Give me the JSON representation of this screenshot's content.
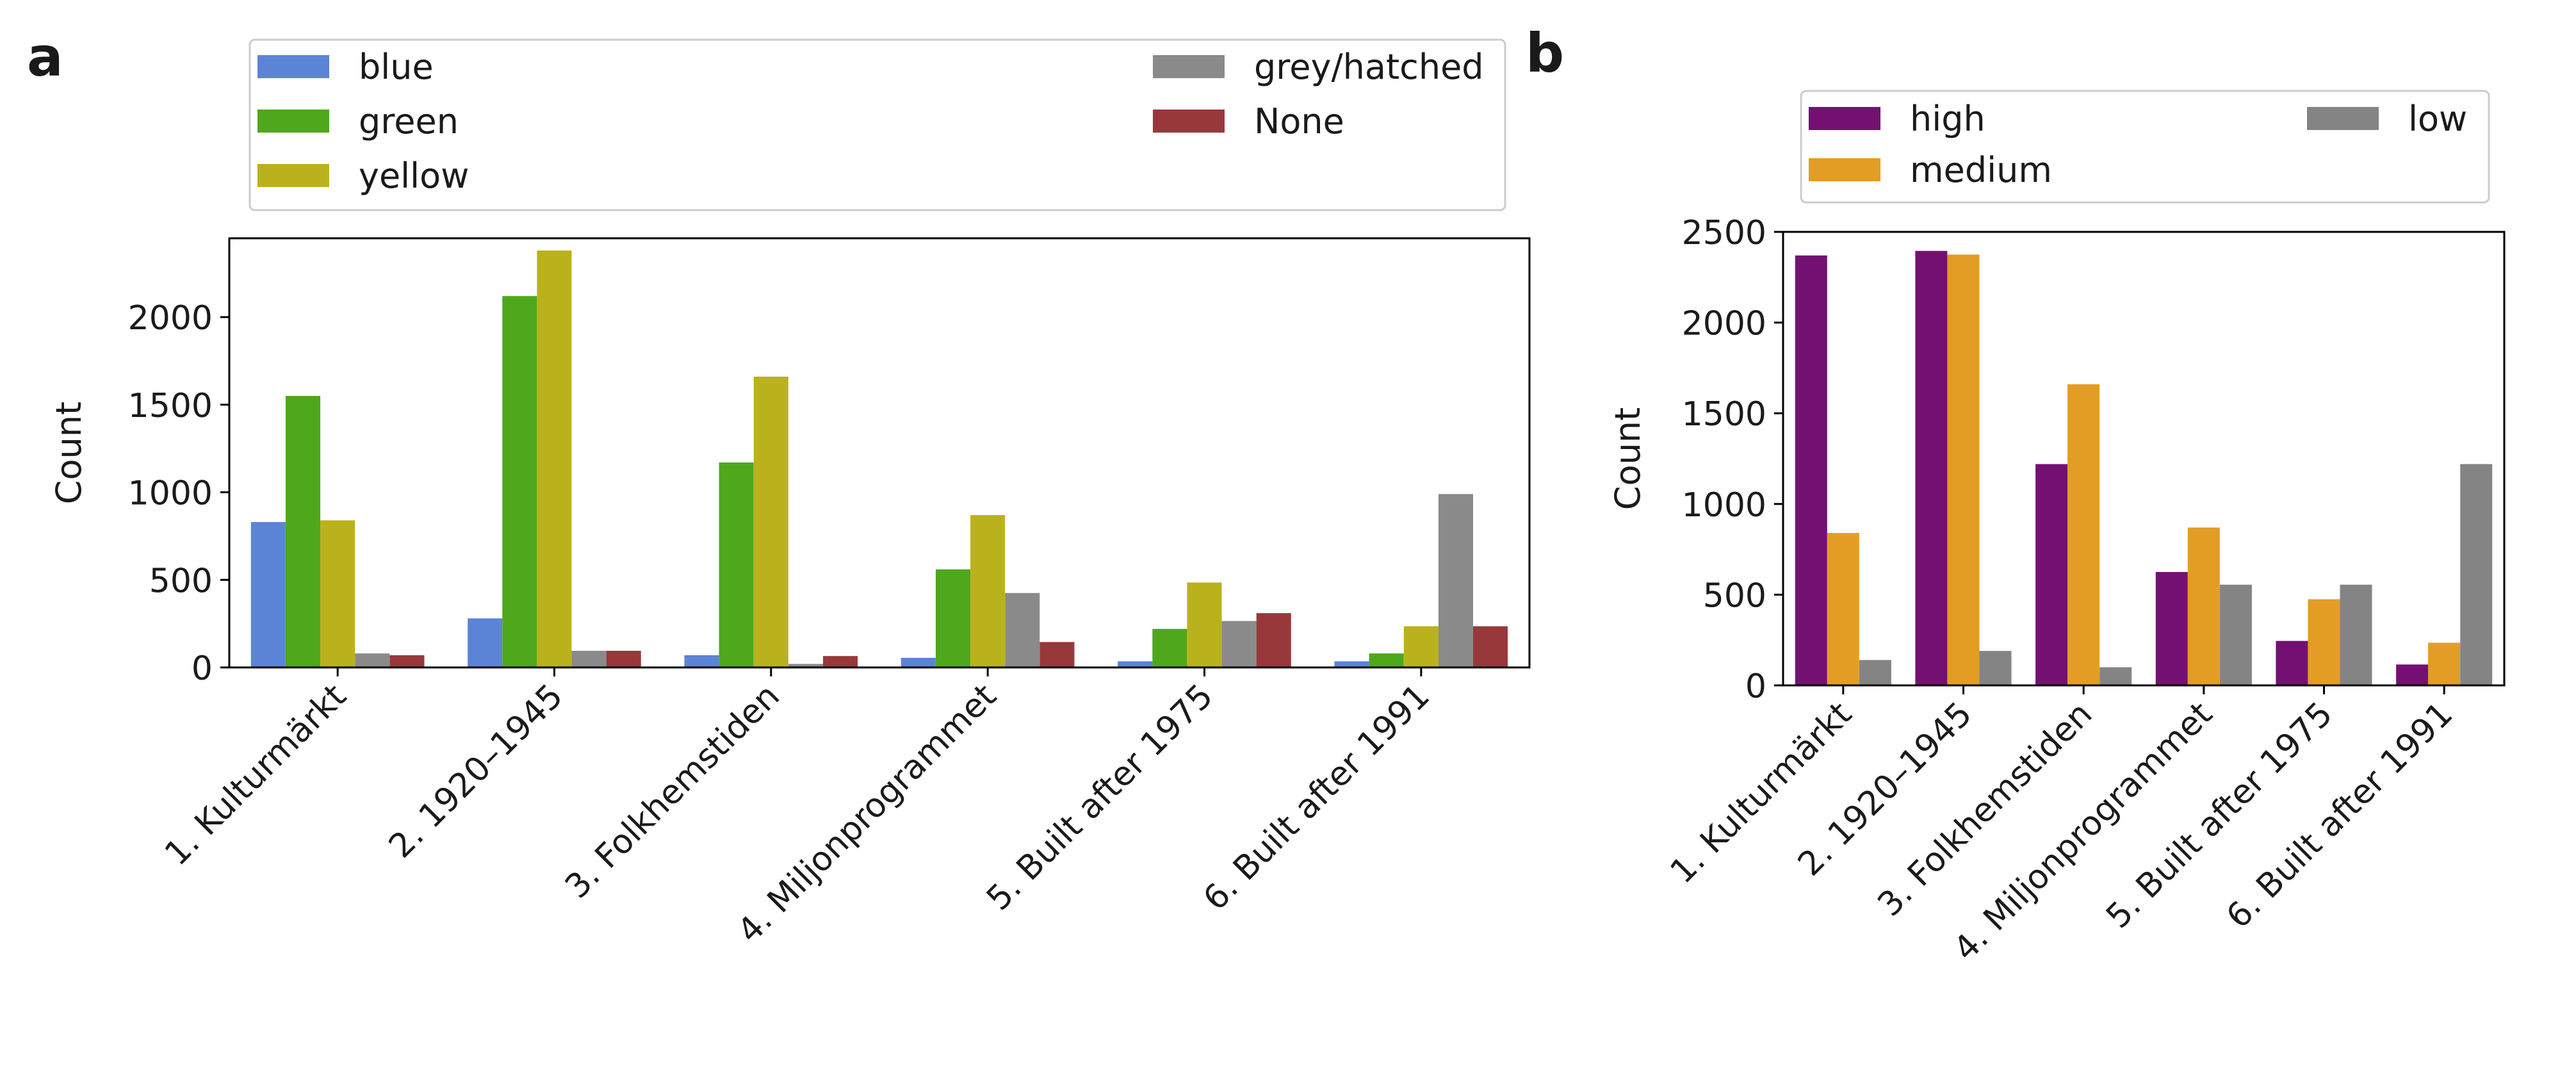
{
  "chart_data": [
    {
      "panel": "a",
      "type": "bar",
      "ylabel": "Count",
      "xlabel": "",
      "ylim": [
        0,
        2450
      ],
      "yticks": [
        0,
        500,
        1000,
        1500,
        2000
      ],
      "categories": [
        "1. Kulturmärkt",
        "2. 1920–1945",
        "3. Folkhemstiden",
        "4. Miljonprogrammet",
        "5. Built after 1975",
        "6. Built after 1991"
      ],
      "legend_position": "top (above plot)",
      "series": [
        {
          "name": "blue",
          "color": "#5b84d6",
          "values": [
            830,
            280,
            70,
            55,
            35,
            35
          ]
        },
        {
          "name": "green",
          "color": "#4fa81b",
          "values": [
            1550,
            2120,
            1170,
            560,
            220,
            80
          ]
        },
        {
          "name": "yellow",
          "color": "#bab21c",
          "values": [
            840,
            2380,
            1660,
            870,
            485,
            235
          ]
        },
        {
          "name": "grey/hatched",
          "color": "#8a8a8a",
          "values": [
            80,
            95,
            20,
            425,
            265,
            990
          ]
        },
        {
          "name": "None",
          "color": "#99383b",
          "values": [
            70,
            95,
            65,
            145,
            310,
            235
          ]
        }
      ]
    },
    {
      "panel": "b",
      "type": "bar",
      "ylabel": "Count",
      "xlabel": "",
      "ylim": [
        0,
        2500
      ],
      "yticks": [
        0,
        500,
        1000,
        1500,
        2000,
        2500
      ],
      "categories": [
        "1. Kulturmärkt",
        "2. 1920–1945",
        "3. Folkhemstiden",
        "4. Miljonprogrammet",
        "5. Built after 1975",
        "6. Built after 1991"
      ],
      "legend_position": "top (above plot)",
      "series": [
        {
          "name": "high",
          "color": "#751073",
          "values": [
            2370,
            2395,
            1220,
            625,
            245,
            115
          ]
        },
        {
          "name": "medium",
          "color": "#e49d24",
          "values": [
            840,
            2375,
            1660,
            870,
            475,
            235
          ]
        },
        {
          "name": "low",
          "color": "#848484",
          "values": [
            140,
            190,
            100,
            555,
            555,
            1220
          ]
        }
      ]
    }
  ]
}
